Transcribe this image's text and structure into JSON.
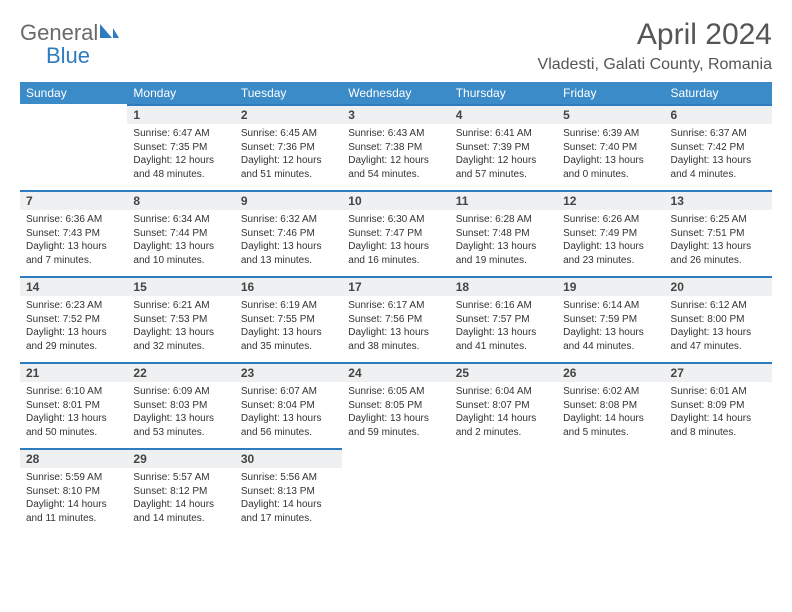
{
  "brand": {
    "word1": "General",
    "word2": "Blue",
    "color_general": "#6a6a6a",
    "color_blue": "#2e7cc0"
  },
  "title": "April 2024",
  "location": "Vladesti, Galati County, Romania",
  "columns": [
    "Sunday",
    "Monday",
    "Tuesday",
    "Wednesday",
    "Thursday",
    "Friday",
    "Saturday"
  ],
  "colors": {
    "header_bg": "#3b8bc9",
    "daynum_bg": "#eef0f1",
    "day_border": "#2e7cc0",
    "text": "#333333"
  },
  "weeks": [
    [
      null,
      {
        "n": "1",
        "sr": "6:47 AM",
        "ss": "7:35 PM",
        "dl": "12 hours and 48 minutes."
      },
      {
        "n": "2",
        "sr": "6:45 AM",
        "ss": "7:36 PM",
        "dl": "12 hours and 51 minutes."
      },
      {
        "n": "3",
        "sr": "6:43 AM",
        "ss": "7:38 PM",
        "dl": "12 hours and 54 minutes."
      },
      {
        "n": "4",
        "sr": "6:41 AM",
        "ss": "7:39 PM",
        "dl": "12 hours and 57 minutes."
      },
      {
        "n": "5",
        "sr": "6:39 AM",
        "ss": "7:40 PM",
        "dl": "13 hours and 0 minutes."
      },
      {
        "n": "6",
        "sr": "6:37 AM",
        "ss": "7:42 PM",
        "dl": "13 hours and 4 minutes."
      }
    ],
    [
      {
        "n": "7",
        "sr": "6:36 AM",
        "ss": "7:43 PM",
        "dl": "13 hours and 7 minutes."
      },
      {
        "n": "8",
        "sr": "6:34 AM",
        "ss": "7:44 PM",
        "dl": "13 hours and 10 minutes."
      },
      {
        "n": "9",
        "sr": "6:32 AM",
        "ss": "7:46 PM",
        "dl": "13 hours and 13 minutes."
      },
      {
        "n": "10",
        "sr": "6:30 AM",
        "ss": "7:47 PM",
        "dl": "13 hours and 16 minutes."
      },
      {
        "n": "11",
        "sr": "6:28 AM",
        "ss": "7:48 PM",
        "dl": "13 hours and 19 minutes."
      },
      {
        "n": "12",
        "sr": "6:26 AM",
        "ss": "7:49 PM",
        "dl": "13 hours and 23 minutes."
      },
      {
        "n": "13",
        "sr": "6:25 AM",
        "ss": "7:51 PM",
        "dl": "13 hours and 26 minutes."
      }
    ],
    [
      {
        "n": "14",
        "sr": "6:23 AM",
        "ss": "7:52 PM",
        "dl": "13 hours and 29 minutes."
      },
      {
        "n": "15",
        "sr": "6:21 AM",
        "ss": "7:53 PM",
        "dl": "13 hours and 32 minutes."
      },
      {
        "n": "16",
        "sr": "6:19 AM",
        "ss": "7:55 PM",
        "dl": "13 hours and 35 minutes."
      },
      {
        "n": "17",
        "sr": "6:17 AM",
        "ss": "7:56 PM",
        "dl": "13 hours and 38 minutes."
      },
      {
        "n": "18",
        "sr": "6:16 AM",
        "ss": "7:57 PM",
        "dl": "13 hours and 41 minutes."
      },
      {
        "n": "19",
        "sr": "6:14 AM",
        "ss": "7:59 PM",
        "dl": "13 hours and 44 minutes."
      },
      {
        "n": "20",
        "sr": "6:12 AM",
        "ss": "8:00 PM",
        "dl": "13 hours and 47 minutes."
      }
    ],
    [
      {
        "n": "21",
        "sr": "6:10 AM",
        "ss": "8:01 PM",
        "dl": "13 hours and 50 minutes."
      },
      {
        "n": "22",
        "sr": "6:09 AM",
        "ss": "8:03 PM",
        "dl": "13 hours and 53 minutes."
      },
      {
        "n": "23",
        "sr": "6:07 AM",
        "ss": "8:04 PM",
        "dl": "13 hours and 56 minutes."
      },
      {
        "n": "24",
        "sr": "6:05 AM",
        "ss": "8:05 PM",
        "dl": "13 hours and 59 minutes."
      },
      {
        "n": "25",
        "sr": "6:04 AM",
        "ss": "8:07 PM",
        "dl": "14 hours and 2 minutes."
      },
      {
        "n": "26",
        "sr": "6:02 AM",
        "ss": "8:08 PM",
        "dl": "14 hours and 5 minutes."
      },
      {
        "n": "27",
        "sr": "6:01 AM",
        "ss": "8:09 PM",
        "dl": "14 hours and 8 minutes."
      }
    ],
    [
      {
        "n": "28",
        "sr": "5:59 AM",
        "ss": "8:10 PM",
        "dl": "14 hours and 11 minutes."
      },
      {
        "n": "29",
        "sr": "5:57 AM",
        "ss": "8:12 PM",
        "dl": "14 hours and 14 minutes."
      },
      {
        "n": "30",
        "sr": "5:56 AM",
        "ss": "8:13 PM",
        "dl": "14 hours and 17 minutes."
      },
      null,
      null,
      null,
      null
    ]
  ],
  "labels": {
    "sunrise": "Sunrise:",
    "sunset": "Sunset:",
    "daylight": "Daylight:"
  }
}
